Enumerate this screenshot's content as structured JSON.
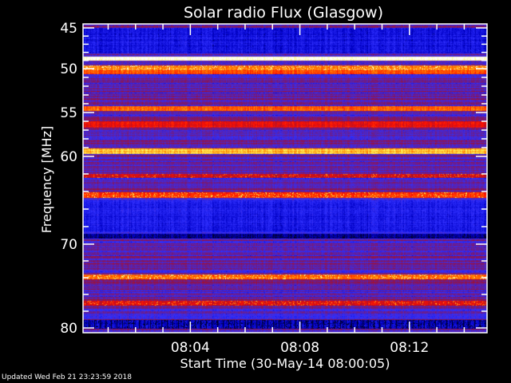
{
  "chart_data": {
    "type": "heatmap",
    "title": "Solar radio Flux (Glasgow)",
    "xlabel": "Start Time (30-May-14 08:00:05)",
    "ylabel": "Frequency [MHz]",
    "x_start": "08:00:05",
    "x_end": "08:14:50",
    "xticks": [
      "08:04",
      "08:08",
      "08:12"
    ],
    "yticks": [
      45,
      50,
      55,
      60,
      70,
      80
    ],
    "ylim": [
      45,
      80
    ],
    "y_direction": "increasing-downward",
    "colormap": [
      "#000000",
      "#0000c8",
      "#3030ff",
      "#6020a0",
      "#a01030",
      "#ff1000",
      "#ff8000",
      "#ffff60",
      "#ffffff"
    ],
    "background_level": 0.35,
    "bands": [
      {
        "freq_mhz": [
          45,
          48
        ],
        "level": 0.18
      },
      {
        "freq_mhz": [
          48.5,
          48.9
        ],
        "level": 0.97
      },
      {
        "freq_mhz": [
          49.6,
          50.1
        ],
        "level": 0.75,
        "bursty": true
      },
      {
        "freq_mhz": [
          50.2,
          50.5
        ],
        "level": 0.68
      },
      {
        "freq_mhz": [
          54.3,
          54.7
        ],
        "level": 0.7
      },
      {
        "freq_mhz": [
          56,
          56.6
        ],
        "level": 0.6
      },
      {
        "freq_mhz": [
          59.1,
          59.6
        ],
        "level": 0.82
      },
      {
        "freq_mhz": [
          62,
          62.4
        ],
        "level": 0.55,
        "bursty": true
      },
      {
        "freq_mhz": [
          64.1,
          64.6
        ],
        "level": 0.66,
        "bursty": true
      },
      {
        "freq_mhz": [
          65,
          68.5
        ],
        "level": 0.2
      },
      {
        "freq_mhz": [
          68.8,
          69.3
        ],
        "level": 0.08
      },
      {
        "freq_mhz": [
          73.6,
          74.1
        ],
        "level": 0.72,
        "bursty": true
      },
      {
        "freq_mhz": [
          76.8,
          77.2
        ],
        "level": 0.58,
        "bursty": true
      },
      {
        "freq_mhz": [
          79,
          80
        ],
        "level": 0.14,
        "striped": true
      }
    ]
  },
  "footer": {
    "updated": "Updated Wed Feb 21 23:23:59 2018"
  }
}
